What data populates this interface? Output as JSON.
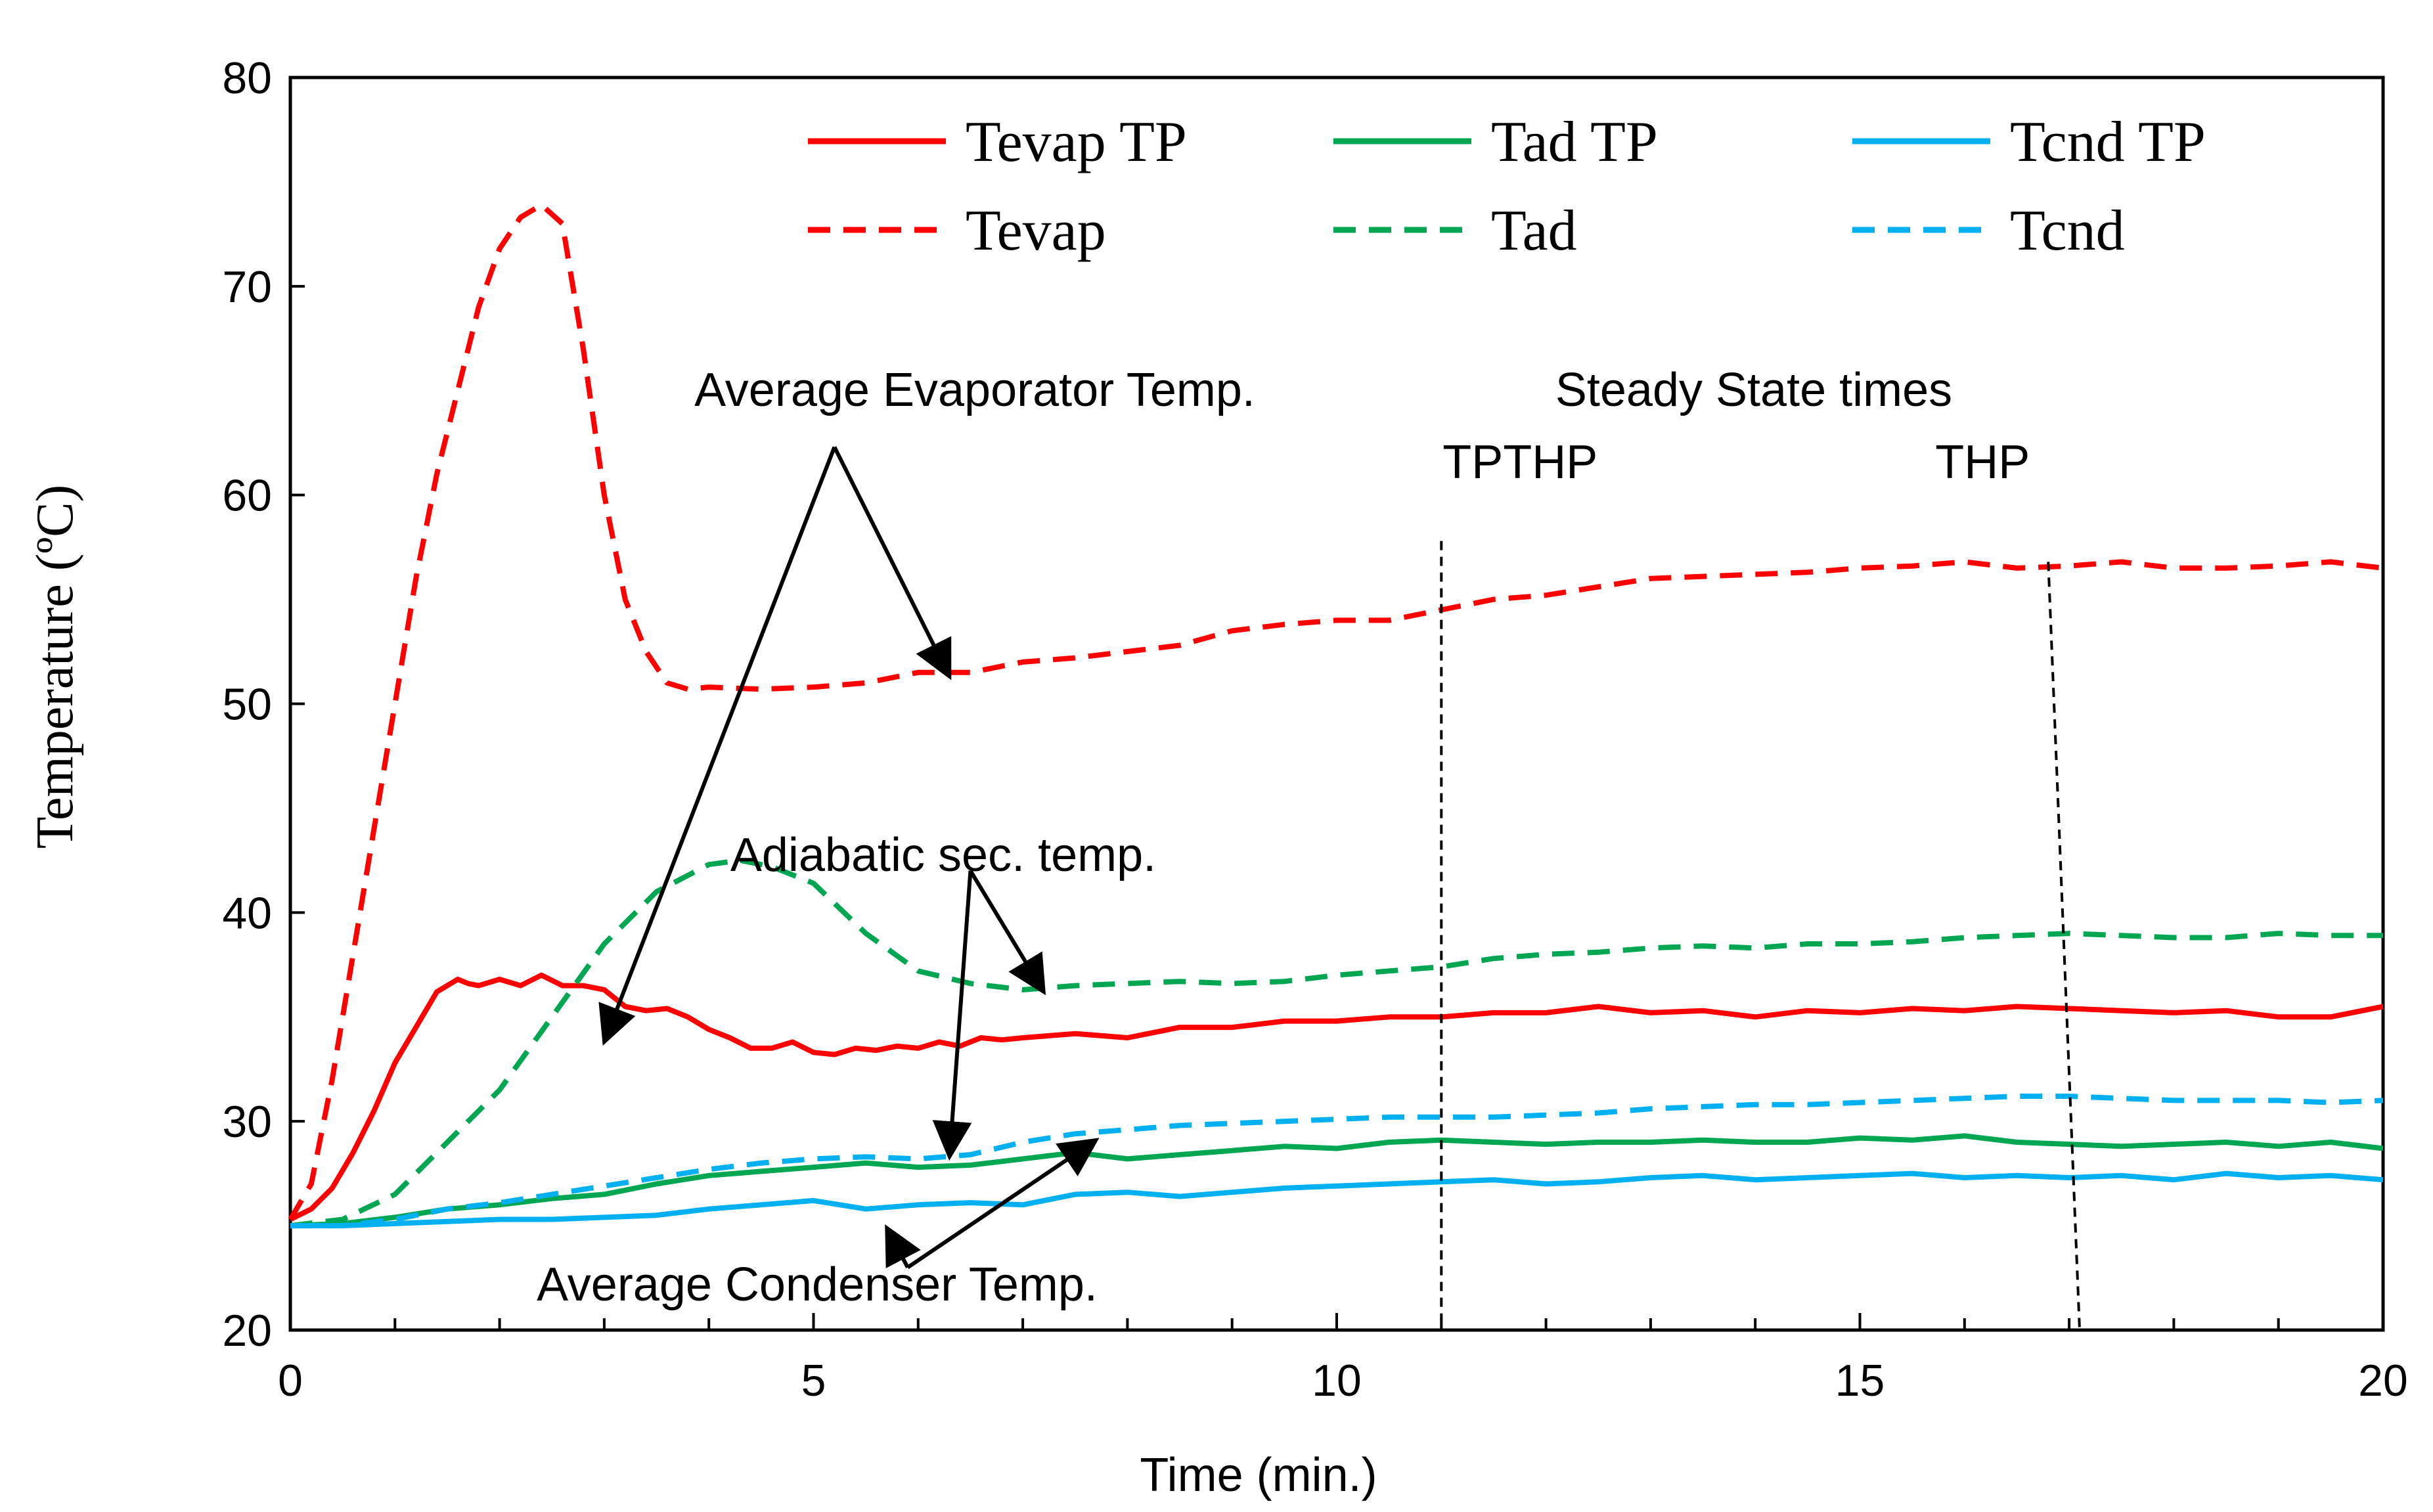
{
  "chart_data": {
    "type": "line",
    "title": "",
    "xlabel": "Time (min.)",
    "ylabel": "Temperature (ºC)",
    "xlim": [
      0,
      20
    ],
    "ylim": [
      20,
      80
    ],
    "xticks": [
      0,
      5,
      10,
      15,
      20
    ],
    "yticks": [
      20,
      30,
      40,
      50,
      60,
      70,
      80
    ],
    "x_minor_step": 1,
    "grid": false,
    "legend_position": "top",
    "series": [
      {
        "name": "Tevap TP",
        "color": "#ff0000",
        "style": "solid",
        "x": [
          0,
          0.2,
          0.4,
          0.6,
          0.8,
          1.0,
          1.2,
          1.4,
          1.6,
          1.7,
          1.8,
          2.0,
          2.2,
          2.4,
          2.6,
          2.8,
          3.0,
          3.2,
          3.4,
          3.6,
          3.8,
          4.0,
          4.2,
          4.4,
          4.6,
          4.8,
          5.0,
          5.2,
          5.4,
          5.6,
          5.8,
          6.0,
          6.2,
          6.4,
          6.6,
          6.8,
          7.0,
          7.5,
          8.0,
          8.5,
          9.0,
          9.5,
          10.0,
          10.5,
          11.0,
          11.5,
          12.0,
          12.5,
          13.0,
          13.5,
          14.0,
          14.5,
          15.0,
          15.5,
          16.0,
          16.5,
          17.0,
          17.5,
          18.0,
          18.5,
          19.0,
          19.5,
          20.0
        ],
        "y": [
          25.3,
          25.8,
          26.8,
          28.5,
          30.5,
          32.8,
          34.5,
          36.2,
          36.8,
          36.6,
          36.5,
          36.8,
          36.5,
          37.0,
          36.5,
          36.5,
          36.3,
          35.5,
          35.3,
          35.4,
          35.0,
          34.4,
          34.0,
          33.5,
          33.5,
          33.8,
          33.3,
          33.2,
          33.5,
          33.4,
          33.6,
          33.5,
          33.8,
          33.6,
          34.0,
          33.9,
          34.0,
          34.2,
          34.0,
          34.5,
          34.5,
          34.8,
          34.8,
          35.0,
          35.0,
          35.2,
          35.2,
          35.5,
          35.2,
          35.3,
          35.0,
          35.3,
          35.2,
          35.4,
          35.3,
          35.5,
          35.4,
          35.3,
          35.2,
          35.3,
          35.0,
          35.0,
          35.5
        ]
      },
      {
        "name": "Tad TP",
        "color": "#00a651",
        "style": "solid",
        "x": [
          0,
          0.5,
          1.0,
          1.5,
          2.0,
          2.5,
          3.0,
          3.5,
          4.0,
          4.5,
          5.0,
          5.5,
          6.0,
          6.5,
          7.0,
          7.5,
          8.0,
          8.5,
          9.0,
          9.5,
          10.0,
          10.5,
          11.0,
          11.5,
          12.0,
          12.5,
          13.0,
          13.5,
          14.0,
          14.5,
          15.0,
          15.5,
          16.0,
          16.5,
          17.0,
          17.5,
          18.0,
          18.5,
          19.0,
          19.5,
          20.0
        ],
        "y": [
          25.0,
          25.1,
          25.4,
          25.8,
          26.0,
          26.3,
          26.5,
          27.0,
          27.4,
          27.6,
          27.8,
          28.0,
          27.8,
          27.9,
          28.2,
          28.5,
          28.2,
          28.4,
          28.6,
          28.8,
          28.7,
          29.0,
          29.1,
          29.0,
          28.9,
          29.0,
          29.0,
          29.1,
          29.0,
          29.0,
          29.2,
          29.1,
          29.3,
          29.0,
          28.9,
          28.8,
          28.9,
          29.0,
          28.8,
          29.0,
          28.7
        ]
      },
      {
        "name": "Tcnd TP",
        "color": "#00b0f0",
        "style": "solid",
        "x": [
          0,
          0.5,
          1.0,
          1.5,
          2.0,
          2.5,
          3.0,
          3.5,
          4.0,
          4.5,
          5.0,
          5.5,
          6.0,
          6.5,
          7.0,
          7.5,
          8.0,
          8.5,
          9.0,
          9.5,
          10.0,
          10.5,
          11.0,
          11.5,
          12.0,
          12.5,
          13.0,
          13.5,
          14.0,
          14.5,
          15.0,
          15.5,
          16.0,
          16.5,
          17.0,
          17.5,
          18.0,
          18.5,
          19.0,
          19.5,
          20.0
        ],
        "y": [
          25.0,
          25.0,
          25.1,
          25.2,
          25.3,
          25.3,
          25.4,
          25.5,
          25.8,
          26.0,
          26.2,
          25.8,
          26.0,
          26.1,
          26.0,
          26.5,
          26.6,
          26.4,
          26.6,
          26.8,
          26.9,
          27.0,
          27.1,
          27.2,
          27.0,
          27.1,
          27.3,
          27.4,
          27.2,
          27.3,
          27.4,
          27.5,
          27.3,
          27.4,
          27.3,
          27.4,
          27.2,
          27.5,
          27.3,
          27.4,
          27.2
        ]
      },
      {
        "name": "Tevap",
        "color": "#ff0000",
        "style": "dashed",
        "x": [
          0,
          0.2,
          0.4,
          0.6,
          0.8,
          1.0,
          1.2,
          1.4,
          1.6,
          1.8,
          2.0,
          2.2,
          2.4,
          2.6,
          2.8,
          3.0,
          3.2,
          3.4,
          3.6,
          3.8,
          4.0,
          4.5,
          5.0,
          5.5,
          6.0,
          6.5,
          7.0,
          7.5,
          8.0,
          8.5,
          9.0,
          9.5,
          10.0,
          10.5,
          11.0,
          11.5,
          12.0,
          12.5,
          13.0,
          13.5,
          14.0,
          14.5,
          15.0,
          15.5,
          16.0,
          16.5,
          17.0,
          17.5,
          18.0,
          18.5,
          19.0,
          19.5,
          20.0
        ],
        "y": [
          25.3,
          27.0,
          32.0,
          38.0,
          44.0,
          50.0,
          56.0,
          61.0,
          65.0,
          69.0,
          71.8,
          73.3,
          73.9,
          73.0,
          67.0,
          60.0,
          55.0,
          52.5,
          51.0,
          50.7,
          50.8,
          50.7,
          50.8,
          51.0,
          51.5,
          51.5,
          52.0,
          52.2,
          52.5,
          52.8,
          53.5,
          53.8,
          54.0,
          54.0,
          54.5,
          55.0,
          55.2,
          55.6,
          56.0,
          56.1,
          56.2,
          56.3,
          56.5,
          56.6,
          56.8,
          56.5,
          56.6,
          56.8,
          56.5,
          56.5,
          56.6,
          56.8,
          56.5
        ]
      },
      {
        "name": "Tad",
        "color": "#00a651",
        "style": "dashed",
        "x": [
          0,
          0.5,
          1.0,
          1.5,
          2.0,
          2.5,
          3.0,
          3.5,
          4.0,
          4.3,
          4.6,
          5.0,
          5.5,
          6.0,
          6.5,
          7.0,
          7.5,
          8.0,
          8.5,
          9.0,
          9.5,
          10.0,
          10.5,
          11.0,
          11.5,
          12.0,
          12.5,
          13.0,
          13.5,
          14.0,
          14.5,
          15.0,
          15.5,
          16.0,
          16.5,
          17.0,
          17.5,
          18.0,
          18.5,
          19.0,
          19.5,
          20.0
        ],
        "y": [
          25.0,
          25.3,
          26.5,
          29.0,
          31.5,
          35.0,
          38.5,
          41.0,
          42.3,
          42.5,
          42.2,
          41.4,
          39.0,
          37.2,
          36.6,
          36.3,
          36.5,
          36.6,
          36.7,
          36.6,
          36.7,
          37.0,
          37.2,
          37.4,
          37.8,
          38.0,
          38.1,
          38.3,
          38.4,
          38.3,
          38.5,
          38.5,
          38.6,
          38.8,
          38.9,
          39.0,
          38.9,
          38.8,
          38.8,
          39.0,
          38.9,
          38.9
        ]
      },
      {
        "name": "Tcnd",
        "color": "#00b0f0",
        "style": "dashed",
        "x": [
          0,
          0.5,
          1.0,
          1.5,
          2.0,
          2.5,
          3.0,
          3.5,
          4.0,
          4.5,
          5.0,
          5.5,
          6.0,
          6.5,
          7.0,
          7.5,
          8.0,
          8.5,
          9.0,
          9.5,
          10.0,
          10.5,
          11.0,
          11.5,
          12.0,
          12.5,
          13.0,
          13.5,
          14.0,
          14.5,
          15.0,
          15.5,
          16.0,
          16.5,
          17.0,
          17.5,
          18.0,
          18.5,
          19.0,
          19.5,
          20.0
        ],
        "y": [
          25.0,
          25.0,
          25.3,
          25.8,
          26.1,
          26.5,
          26.9,
          27.3,
          27.7,
          28.0,
          28.2,
          28.3,
          28.2,
          28.4,
          29.0,
          29.4,
          29.6,
          29.8,
          29.9,
          30.0,
          30.1,
          30.2,
          30.2,
          30.2,
          30.3,
          30.4,
          30.6,
          30.7,
          30.8,
          30.8,
          30.9,
          31.0,
          31.1,
          31.2,
          31.2,
          31.1,
          31.0,
          31.0,
          31.0,
          30.9,
          31.0
        ]
      }
    ],
    "legend": [
      {
        "label": "Tevap TP",
        "series": 0
      },
      {
        "label": "Tad TP",
        "series": 1
      },
      {
        "label": "Tcnd TP",
        "series": 2
      },
      {
        "label": "Tevap",
        "series": 3
      },
      {
        "label": "Tad",
        "series": 4
      },
      {
        "label": "Tcnd",
        "series": 5
      }
    ],
    "steady_state_lines": [
      {
        "label": "TPTHP",
        "x_top": 11.0,
        "x_bottom": 11.0,
        "y_top": 57.8,
        "y_bottom": 20.5
      },
      {
        "label": "THP",
        "x_top": 16.8,
        "x_bottom": 17.1,
        "y_top": 56.8,
        "y_bottom": 20.0
      }
    ],
    "annotations": [
      {
        "text": "Average Evaporator Temp.",
        "arrow_origin": [
          5.2,
          62.3
        ],
        "arrows_to": [
          [
            3.0,
            33.8
          ],
          [
            6.3,
            51.3
          ]
        ]
      },
      {
        "text": "Adiabatic sec. temp.",
        "arrow_origin": [
          6.5,
          42.0
        ],
        "arrows_to": [
          [
            6.3,
            28.3
          ],
          [
            7.2,
            36.2
          ]
        ]
      },
      {
        "text": "Average Condenser Temp.",
        "arrow_origin": [
          5.9,
          23.0
        ],
        "arrows_to": [
          [
            5.7,
            24.9
          ],
          [
            7.7,
            29.1
          ]
        ]
      }
    ],
    "steady_state_title": "Steady State times"
  }
}
